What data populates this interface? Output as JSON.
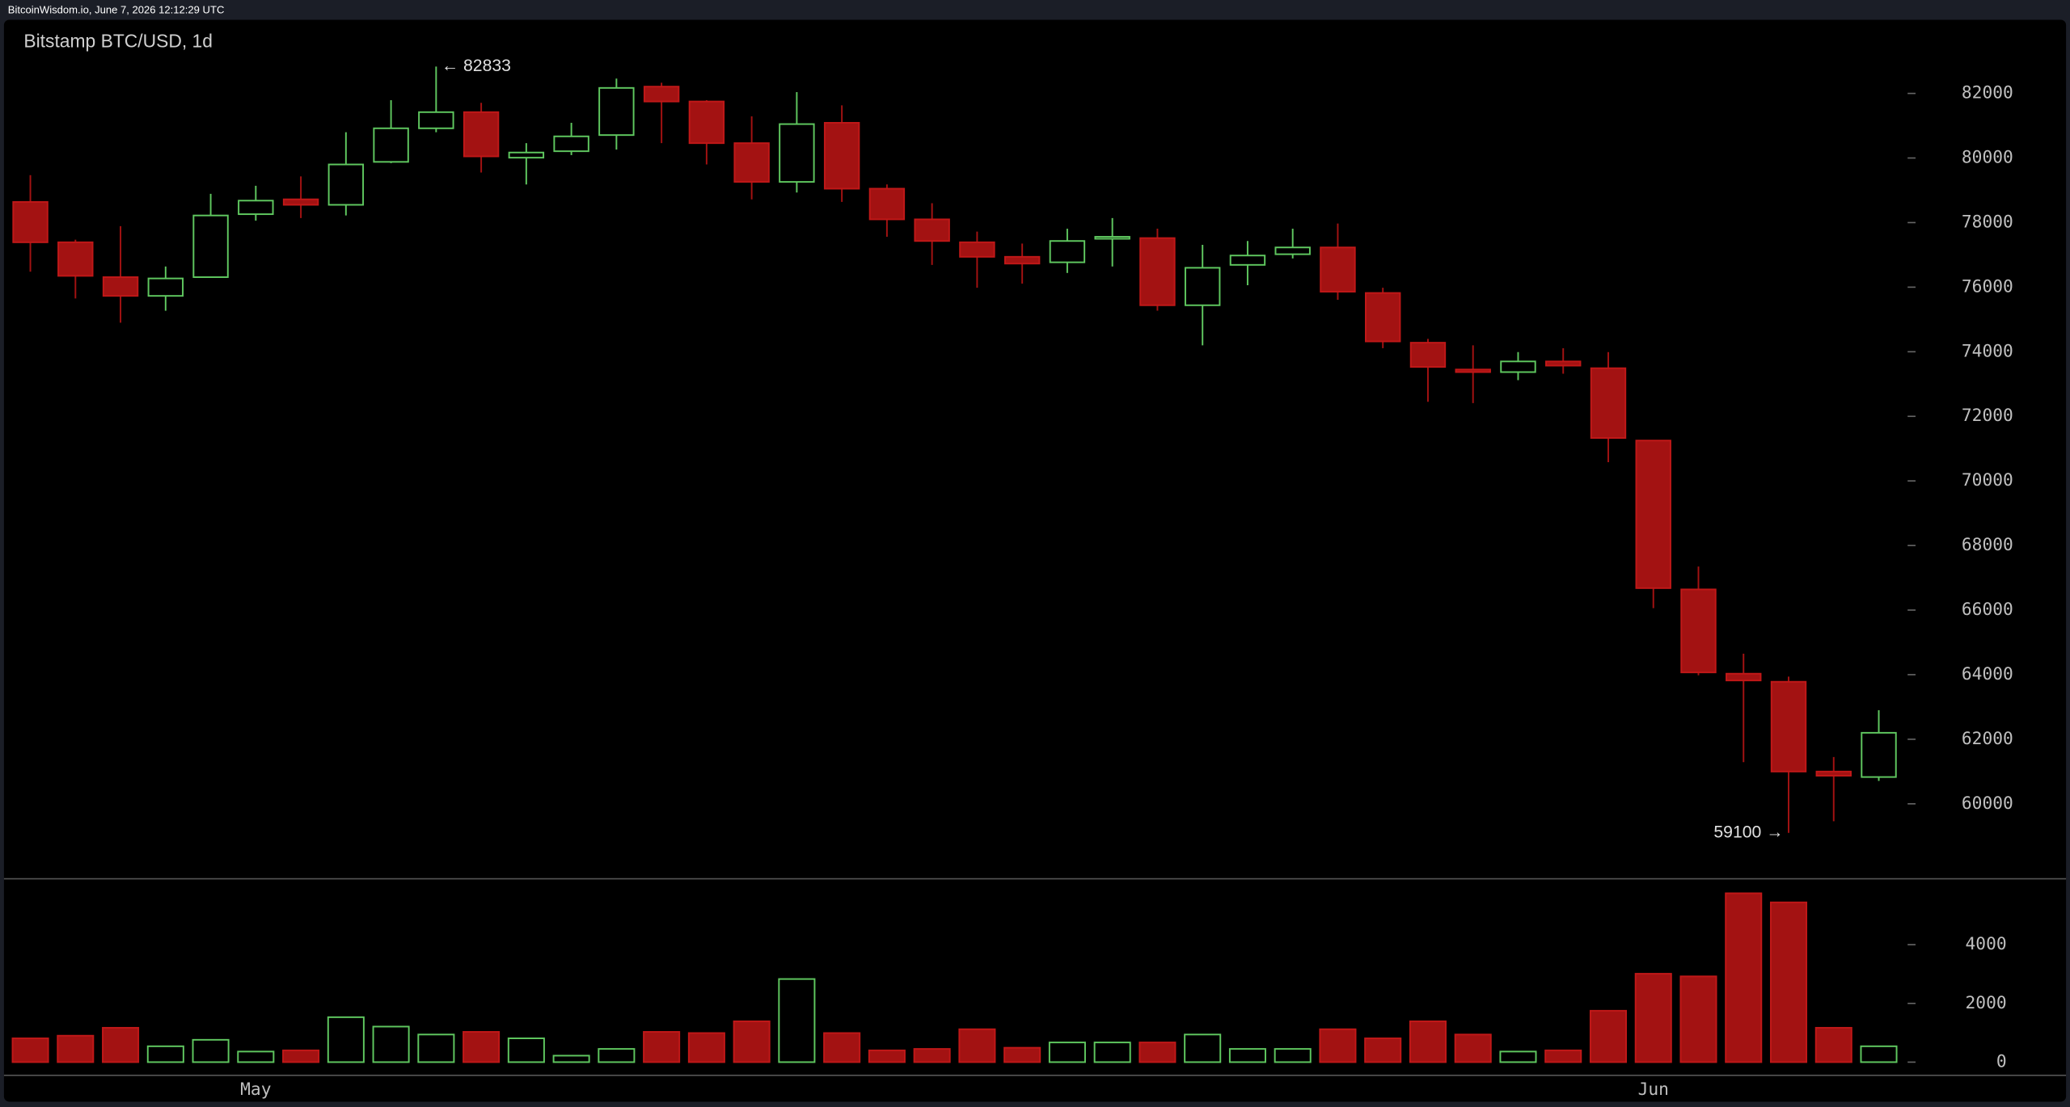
{
  "header": "BitcoinWisdom.io, June 7, 2026 12:12:29 UTC",
  "chart_data": [
    {
      "type": "candlestick",
      "title": "Bitstamp BTC/USD, 1d",
      "up_color": "#5fc75f",
      "down_color": "#a31212",
      "open": [
        78640,
        77390,
        76310,
        75730,
        76310,
        78260,
        78720,
        78550,
        79880,
        80920,
        81420,
        80010,
        80210,
        80710,
        82210,
        81750,
        80460,
        79260,
        81090,
        79050,
        78100,
        77390,
        76940,
        76770,
        77520,
        77520,
        75440,
        76690,
        77020,
        77230,
        75820,
        74280,
        73450,
        73370,
        73700,
        73490,
        71250,
        66640,
        64030,
        63780,
        61000,
        60830
      ],
      "high": [
        79470,
        77470,
        77890,
        76640,
        78890,
        79140,
        79430,
        80800,
        81790,
        82833,
        81710,
        80460,
        81090,
        82460,
        82330,
        81790,
        81290,
        82040,
        81630,
        79180,
        78600,
        77720,
        77350,
        77810,
        78140,
        77810,
        77310,
        77430,
        77810,
        77970,
        75980,
        74400,
        74200,
        73990,
        74110,
        73990,
        71250,
        67350,
        64650,
        63940,
        61450,
        62900
      ],
      "low": [
        76480,
        75650,
        74900,
        75270,
        76300,
        78060,
        78140,
        78220,
        79840,
        80800,
        79550,
        79180,
        80090,
        80260,
        80460,
        79800,
        78720,
        78930,
        78640,
        77560,
        76690,
        75980,
        76110,
        76440,
        76640,
        75270,
        74200,
        76060,
        76890,
        75610,
        74110,
        72450,
        72410,
        73120,
        73320,
        70580,
        66060,
        63980,
        61290,
        59100,
        59460,
        60710
      ],
      "close": [
        77390,
        76350,
        75730,
        76270,
        78220,
        78680,
        78550,
        79800,
        80920,
        81420,
        80050,
        80170,
        80670,
        82170,
        81750,
        80460,
        79260,
        81050,
        79050,
        78100,
        77430,
        76940,
        76730,
        77430,
        77560,
        75440,
        76600,
        76980,
        77230,
        75860,
        74320,
        73530,
        73370,
        73700,
        73570,
        71330,
        66680,
        64070,
        63820,
        61000,
        60870,
        62200
      ],
      "ylim": [
        57680,
        84280
      ],
      "yticks": [
        60000,
        62000,
        64000,
        66000,
        68000,
        70000,
        72000,
        74000,
        76000,
        78000,
        80000,
        82000
      ],
      "annotations": [
        "← 82833",
        "59100 →"
      ]
    },
    {
      "type": "bar",
      "categories": [
        null,
        null,
        null,
        null,
        null,
        "May",
        null,
        null,
        null,
        null,
        null,
        null,
        null,
        null,
        null,
        null,
        null,
        null,
        null,
        null,
        null,
        null,
        null,
        null,
        null,
        null,
        null,
        null,
        null,
        null,
        null,
        null,
        null,
        null,
        null,
        null,
        "Jun",
        null,
        null,
        null,
        null,
        null
      ],
      "values": [
        810,
        900,
        1170,
        540,
        760,
        360,
        400,
        1530,
        1210,
        940,
        1030,
        810,
        220,
        450,
        1030,
        990,
        1390,
        2830,
        990,
        400,
        450,
        1120,
        490,
        670,
        670,
        670,
        940,
        450,
        450,
        1120,
        810,
        1390,
        940,
        360,
        400,
        1750,
        3010,
        2920,
        5750,
        5440,
        1170,
        540
      ],
      "ylim": [
        -450,
        6200
      ],
      "yticks": [
        0,
        2000,
        4000
      ]
    }
  ]
}
